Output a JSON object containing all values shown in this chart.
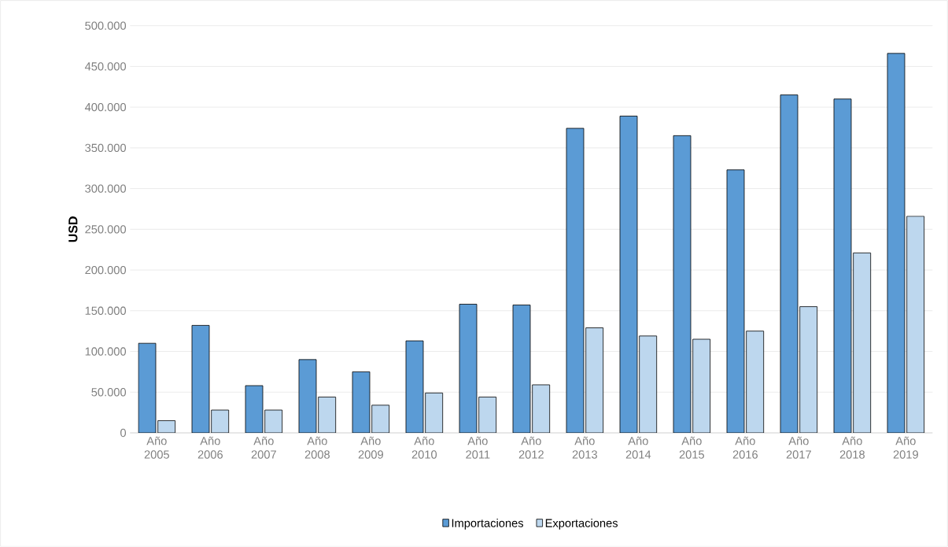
{
  "chart_data": {
    "type": "bar",
    "ylabel": "USD",
    "categories": [
      "Año 2005",
      "Año 2006",
      "Año 2007",
      "Año 2008",
      "Año 2009",
      "Año 2010",
      "Año 2011",
      "Año 2012",
      "Año 2013",
      "Año 2014",
      "Año 2015",
      "Año 2016",
      "Año 2017",
      "Año 2018",
      "Año 2019"
    ],
    "series": [
      {
        "name": "Importaciones",
        "color": "#5b9bd5",
        "values": [
          110000,
          132000,
          58000,
          90000,
          75000,
          113000,
          158000,
          157000,
          374000,
          389000,
          365000,
          323000,
          415000,
          410000,
          466000
        ]
      },
      {
        "name": "Exportaciones",
        "color": "#bdd7ee",
        "values": [
          15000,
          28000,
          28000,
          44000,
          34000,
          49000,
          44000,
          59000,
          129000,
          119000,
          115000,
          125000,
          155000,
          221000,
          266000
        ]
      }
    ],
    "ylim": [
      0,
      500000
    ],
    "yticks": [
      0,
      {
        "value": 50000,
        "label": "50.000"
      },
      {
        "value": 100000,
        "label": "100.000"
      },
      {
        "value": 150000,
        "label": "150.000"
      },
      {
        "value": 200000,
        "label": "200.000"
      },
      {
        "value": 250000,
        "label": "250.000"
      },
      {
        "value": 300000,
        "label": "300.000"
      },
      {
        "value": 350000,
        "label": "350.000"
      },
      {
        "value": 400000,
        "label": "400.000"
      },
      {
        "value": 450000,
        "label": "450.000"
      },
      {
        "value": 500000,
        "label": "500.000"
      }
    ],
    "grid": "y",
    "legend": "bottom"
  }
}
